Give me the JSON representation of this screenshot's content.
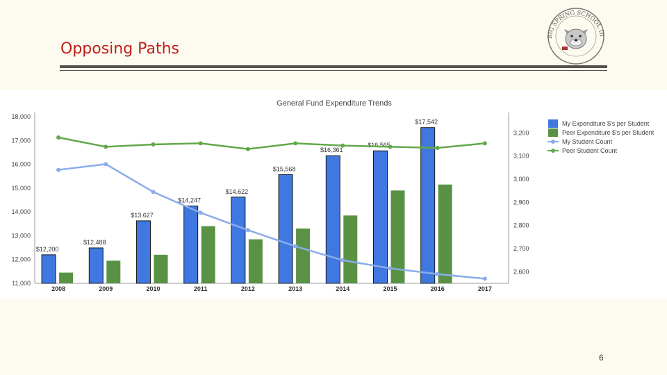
{
  "slide": {
    "title": "Opposing Paths",
    "page_number": "6"
  },
  "logo": {
    "text": "BIG SPRING SCHOOL DISTRICT",
    "icon": "bulldog-seal-icon"
  },
  "chart_data": {
    "type": "bar",
    "title": "General Fund Expenditure Trends",
    "categories": [
      "2008",
      "2009",
      "2010",
      "2011",
      "2012",
      "2013",
      "2014",
      "2015",
      "2016",
      "2017"
    ],
    "y_left": {
      "min": 11000,
      "max": 18000,
      "ticks": [
        "11,000",
        "12,000",
        "13,000",
        "14,000",
        "15,000",
        "16,000",
        "17,000",
        "18,000"
      ]
    },
    "y_right": {
      "min": 2550,
      "max": 3270,
      "ticks_values": [
        2600,
        2700,
        2800,
        2900,
        3000,
        3100,
        3200
      ],
      "ticks": [
        "2,600",
        "2,700",
        "2,800",
        "2,900",
        "3,000",
        "3,100",
        "3,200"
      ]
    },
    "series": [
      {
        "name": "My Expenditure $'s per Student",
        "kind": "bar",
        "axis": "left",
        "color": "#3f78e0",
        "values": [
          12200,
          12488,
          13627,
          14247,
          14622,
          15568,
          16361,
          16565,
          17542,
          null
        ],
        "labels": [
          "$12,200",
          "$12,488",
          "$13,627",
          "$14,247",
          "$14,622",
          "$15,568",
          "$16,361",
          "$16,565",
          "$17,542",
          ""
        ]
      },
      {
        "name": "Peer Expenditure $'s per Student",
        "kind": "bar",
        "axis": "left",
        "color": "#5a9245",
        "values": [
          11450,
          11950,
          12200,
          13400,
          12850,
          13300,
          13850,
          14900,
          15150,
          null
        ]
      },
      {
        "name": "My Student Count",
        "kind": "line",
        "axis": "right",
        "color": "#8aacea",
        "values": [
          3040,
          3065,
          2945,
          2855,
          2780,
          2710,
          2650,
          2615,
          2590,
          2570
        ]
      },
      {
        "name": "Peer Student Count",
        "kind": "line",
        "axis": "right",
        "color": "#62a84a",
        "values": [
          3180,
          3140,
          3150,
          3155,
          3130,
          3155,
          3145,
          3140,
          3135,
          3155
        ]
      }
    ],
    "legend_position": "top-right"
  },
  "colors": {
    "title": "#c0201c",
    "rule": "#55524a",
    "background": "#fdfbf0"
  }
}
